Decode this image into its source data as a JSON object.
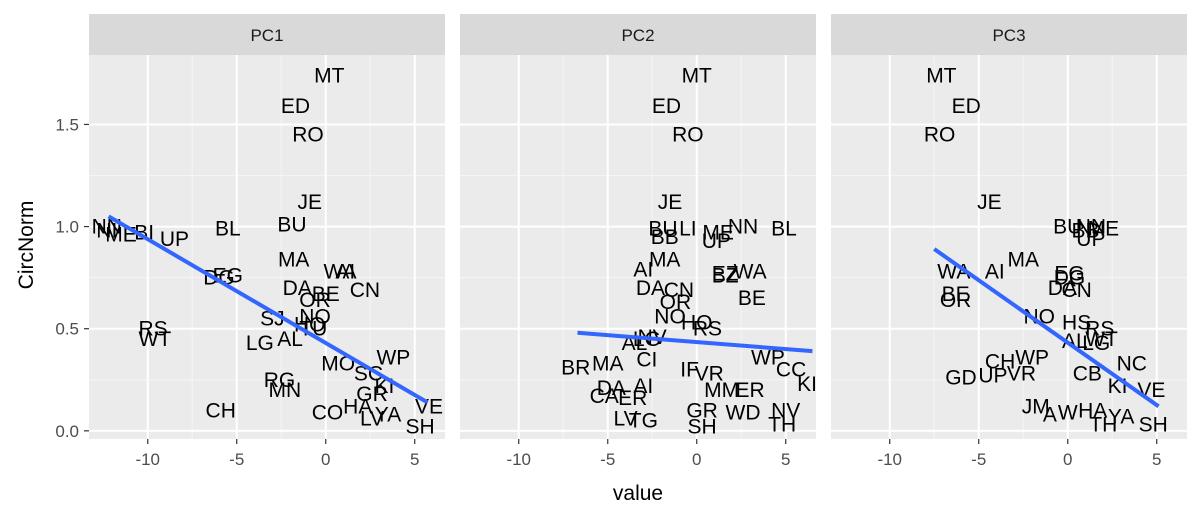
{
  "chart_data": {
    "type": "scatter",
    "xlabel": "value",
    "ylabel": "CircNorm",
    "xlim": [
      -13.3,
      6.7
    ],
    "ylim": [
      -0.04,
      1.84
    ],
    "x_ticks": [
      -10,
      -5,
      0,
      5
    ],
    "y_ticks": [
      0.0,
      0.5,
      1.0,
      1.5
    ],
    "y_tick_labels": [
      "0.0",
      "0.5",
      "1.0",
      "1.5"
    ],
    "grid": true,
    "colors": {
      "panel_bg": "#ebebeb",
      "strip_bg": "#d9d9d9",
      "grid_major": "#ffffff",
      "grid_minor": "#f5f5f5",
      "trend_line": "#3366ff",
      "text": "#000000",
      "tick_text": "#4d4d4d"
    },
    "panels": [
      {
        "label": "PC1",
        "trend": {
          "x0": -12.2,
          "y0": 1.05,
          "x1": 5.7,
          "y1": 0.14
        },
        "points": [
          {
            "label": "MT",
            "x": 0.2,
            "y": 1.74
          },
          {
            "label": "ED",
            "x": -1.7,
            "y": 1.59
          },
          {
            "label": "RO",
            "x": -1.0,
            "y": 1.45
          },
          {
            "label": "JE",
            "x": -0.9,
            "y": 1.12
          },
          {
            "label": "BU",
            "x": -1.9,
            "y": 1.01
          },
          {
            "label": "BL",
            "x": -5.5,
            "y": 0.99
          },
          {
            "label": "NN",
            "x": -12.3,
            "y": 1.0
          },
          {
            "label": "NI",
            "x": -12.3,
            "y": 0.98
          },
          {
            "label": "ME",
            "x": -11.5,
            "y": 0.96
          },
          {
            "label": "UP",
            "x": -8.5,
            "y": 0.94
          },
          {
            "label": "BI",
            "x": -10.2,
            "y": 0.97
          },
          {
            "label": "MA",
            "x": -1.8,
            "y": 0.84
          },
          {
            "label": "WA",
            "x": 0.8,
            "y": 0.78
          },
          {
            "label": "AI",
            "x": 1.1,
            "y": 0.78
          },
          {
            "label": "EG",
            "x": -5.5,
            "y": 0.76
          },
          {
            "label": "DG",
            "x": -6.0,
            "y": 0.75
          },
          {
            "label": "DA",
            "x": -1.6,
            "y": 0.7
          },
          {
            "label": "CN",
            "x": 2.2,
            "y": 0.69
          },
          {
            "label": "BE",
            "x": 0.0,
            "y": 0.67
          },
          {
            "label": "OR",
            "x": -0.6,
            "y": 0.64
          },
          {
            "label": "NO",
            "x": -0.6,
            "y": 0.56
          },
          {
            "label": "HO",
            "x": -0.9,
            "y": 0.52
          },
          {
            "label": "SJ",
            "x": -3.0,
            "y": 0.55
          },
          {
            "label": "TU",
            "x": -0.7,
            "y": 0.5
          },
          {
            "label": "RS",
            "x": -9.7,
            "y": 0.5
          },
          {
            "label": "WT",
            "x": -9.6,
            "y": 0.45
          },
          {
            "label": "LG",
            "x": -3.7,
            "y": 0.43
          },
          {
            "label": "AL",
            "x": -2.0,
            "y": 0.45
          },
          {
            "label": "WP",
            "x": 3.8,
            "y": 0.36
          },
          {
            "label": "MO",
            "x": 0.7,
            "y": 0.33
          },
          {
            "label": "RG",
            "x": -2.6,
            "y": 0.25
          },
          {
            "label": "MN",
            "x": -2.3,
            "y": 0.2
          },
          {
            "label": "SC",
            "x": 2.4,
            "y": 0.28
          },
          {
            "label": "KI",
            "x": 3.3,
            "y": 0.22
          },
          {
            "label": "GR",
            "x": 2.6,
            "y": 0.18
          },
          {
            "label": "VE",
            "x": 5.8,
            "y": 0.12
          },
          {
            "label": "CH",
            "x": -5.9,
            "y": 0.1
          },
          {
            "label": "CO",
            "x": 0.1,
            "y": 0.09
          },
          {
            "label": "HA",
            "x": 1.8,
            "y": 0.12
          },
          {
            "label": "LV",
            "x": 2.6,
            "y": 0.06
          },
          {
            "label": "SH",
            "x": 5.3,
            "y": 0.02
          },
          {
            "label": "YA",
            "x": 3.5,
            "y": 0.08
          }
        ]
      },
      {
        "label": "PC2",
        "trend": {
          "x0": -6.7,
          "y0": 0.48,
          "x1": 6.5,
          "y1": 0.39
        },
        "points": [
          {
            "label": "MT",
            "x": 0.0,
            "y": 1.74
          },
          {
            "label": "ED",
            "x": -1.7,
            "y": 1.59
          },
          {
            "label": "RO",
            "x": -0.5,
            "y": 1.45
          },
          {
            "label": "JE",
            "x": -1.5,
            "y": 1.12
          },
          {
            "label": "BU",
            "x": -1.9,
            "y": 0.99
          },
          {
            "label": "BL",
            "x": 4.9,
            "y": 0.99
          },
          {
            "label": "NN",
            "x": 2.6,
            "y": 1.0
          },
          {
            "label": "LI",
            "x": -0.5,
            "y": 0.99
          },
          {
            "label": "ME",
            "x": 1.2,
            "y": 0.97
          },
          {
            "label": "UP",
            "x": 1.1,
            "y": 0.93
          },
          {
            "label": "BB",
            "x": -1.8,
            "y": 0.95
          },
          {
            "label": "MA",
            "x": -1.8,
            "y": 0.84
          },
          {
            "label": "AI",
            "x": -3.0,
            "y": 0.79
          },
          {
            "label": "WA",
            "x": 3.0,
            "y": 0.78
          },
          {
            "label": "EZ",
            "x": 1.6,
            "y": 0.77
          },
          {
            "label": "BZ",
            "x": 1.6,
            "y": 0.76
          },
          {
            "label": "BE",
            "x": 3.1,
            "y": 0.65
          },
          {
            "label": "DA",
            "x": -2.6,
            "y": 0.7
          },
          {
            "label": "CN",
            "x": -1.0,
            "y": 0.69
          },
          {
            "label": "OR",
            "x": -1.2,
            "y": 0.63
          },
          {
            "label": "NO",
            "x": -1.5,
            "y": 0.56
          },
          {
            "label": "HO",
            "x": 0.0,
            "y": 0.53
          },
          {
            "label": "RS",
            "x": 0.6,
            "y": 0.5
          },
          {
            "label": "LG",
            "x": -2.8,
            "y": 0.45
          },
          {
            "label": "AL",
            "x": -3.5,
            "y": 0.43
          },
          {
            "label": "NV",
            "x": -2.5,
            "y": 0.46
          },
          {
            "label": "WP",
            "x": 4.0,
            "y": 0.36
          },
          {
            "label": "CC",
            "x": 5.3,
            "y": 0.3
          },
          {
            "label": "BR",
            "x": -6.8,
            "y": 0.31
          },
          {
            "label": "MA",
            "x": -5.0,
            "y": 0.33
          },
          {
            "label": "CI",
            "x": -2.8,
            "y": 0.35
          },
          {
            "label": "IF",
            "x": -0.4,
            "y": 0.3
          },
          {
            "label": "VR",
            "x": 0.7,
            "y": 0.28
          },
          {
            "label": "KI",
            "x": 6.2,
            "y": 0.23
          },
          {
            "label": "DA",
            "x": -4.8,
            "y": 0.21
          },
          {
            "label": "AI",
            "x": -3.0,
            "y": 0.22
          },
          {
            "label": "CA",
            "x": -5.2,
            "y": 0.17
          },
          {
            "label": "ER",
            "x": -3.6,
            "y": 0.16
          },
          {
            "label": "MM",
            "x": 1.4,
            "y": 0.2
          },
          {
            "label": "ER",
            "x": 3.0,
            "y": 0.2
          },
          {
            "label": "GR",
            "x": 0.3,
            "y": 0.1
          },
          {
            "label": "WD",
            "x": 2.6,
            "y": 0.09
          },
          {
            "label": "NV",
            "x": 5.0,
            "y": 0.1
          },
          {
            "label": "LV",
            "x": -4.0,
            "y": 0.06
          },
          {
            "label": "TG",
            "x": -3.0,
            "y": 0.05
          },
          {
            "label": "SH",
            "x": 0.3,
            "y": 0.02
          },
          {
            "label": "TH",
            "x": 4.8,
            "y": 0.03
          }
        ]
      },
      {
        "label": "PC3",
        "trend": {
          "x0": -7.5,
          "y0": 0.89,
          "x1": 5.1,
          "y1": 0.12
        },
        "points": [
          {
            "label": "MT",
            "x": -7.1,
            "y": 1.74
          },
          {
            "label": "ED",
            "x": -5.7,
            "y": 1.59
          },
          {
            "label": "RO",
            "x": -7.2,
            "y": 1.45
          },
          {
            "label": "JE",
            "x": -4.4,
            "y": 1.12
          },
          {
            "label": "BU",
            "x": 0.0,
            "y": 1.0
          },
          {
            "label": "NN",
            "x": 1.3,
            "y": 1.0
          },
          {
            "label": "ME",
            "x": 2.0,
            "y": 0.99
          },
          {
            "label": "BB",
            "x": 1.0,
            "y": 0.98
          },
          {
            "label": "UP",
            "x": 1.3,
            "y": 0.94
          },
          {
            "label": "MA",
            "x": -2.5,
            "y": 0.84
          },
          {
            "label": "WA",
            "x": -6.4,
            "y": 0.78
          },
          {
            "label": "AI",
            "x": -4.1,
            "y": 0.78
          },
          {
            "label": "EG",
            "x": 0.1,
            "y": 0.77
          },
          {
            "label": "DG",
            "x": 0.1,
            "y": 0.75
          },
          {
            "label": "CN",
            "x": 0.5,
            "y": 0.69
          },
          {
            "label": "DA",
            "x": -0.3,
            "y": 0.7
          },
          {
            "label": "BE",
            "x": -6.3,
            "y": 0.67
          },
          {
            "label": "OR",
            "x": -6.3,
            "y": 0.64
          },
          {
            "label": "NO",
            "x": -1.6,
            "y": 0.56
          },
          {
            "label": "HS",
            "x": 0.5,
            "y": 0.53
          },
          {
            "label": "RS",
            "x": 1.8,
            "y": 0.5
          },
          {
            "label": "AL",
            "x": 0.4,
            "y": 0.44
          },
          {
            "label": "WT",
            "x": 1.9,
            "y": 0.45
          },
          {
            "label": "LG",
            "x": 1.6,
            "y": 0.43
          },
          {
            "label": "CH",
            "x": -3.8,
            "y": 0.34
          },
          {
            "label": "WP",
            "x": -2.0,
            "y": 0.36
          },
          {
            "label": "NC",
            "x": 3.6,
            "y": 0.33
          },
          {
            "label": "GD",
            "x": -6.0,
            "y": 0.26
          },
          {
            "label": "UP",
            "x": -4.2,
            "y": 0.27
          },
          {
            "label": "VR",
            "x": -2.6,
            "y": 0.28
          },
          {
            "label": "CB",
            "x": 1.1,
            "y": 0.28
          },
          {
            "label": "KI",
            "x": 2.8,
            "y": 0.22
          },
          {
            "label": "VE",
            "x": 4.7,
            "y": 0.2
          },
          {
            "label": "JM",
            "x": -1.8,
            "y": 0.12
          },
          {
            "label": "A",
            "x": -1.0,
            "y": 0.08
          },
          {
            "label": "W",
            "x": 0.0,
            "y": 0.09
          },
          {
            "label": "HA",
            "x": 1.4,
            "y": 0.1
          },
          {
            "label": "YA",
            "x": 3.0,
            "y": 0.07
          },
          {
            "label": "TH",
            "x": 2.0,
            "y": 0.03
          },
          {
            "label": "SH",
            "x": 4.8,
            "y": 0.03
          }
        ]
      }
    ]
  }
}
